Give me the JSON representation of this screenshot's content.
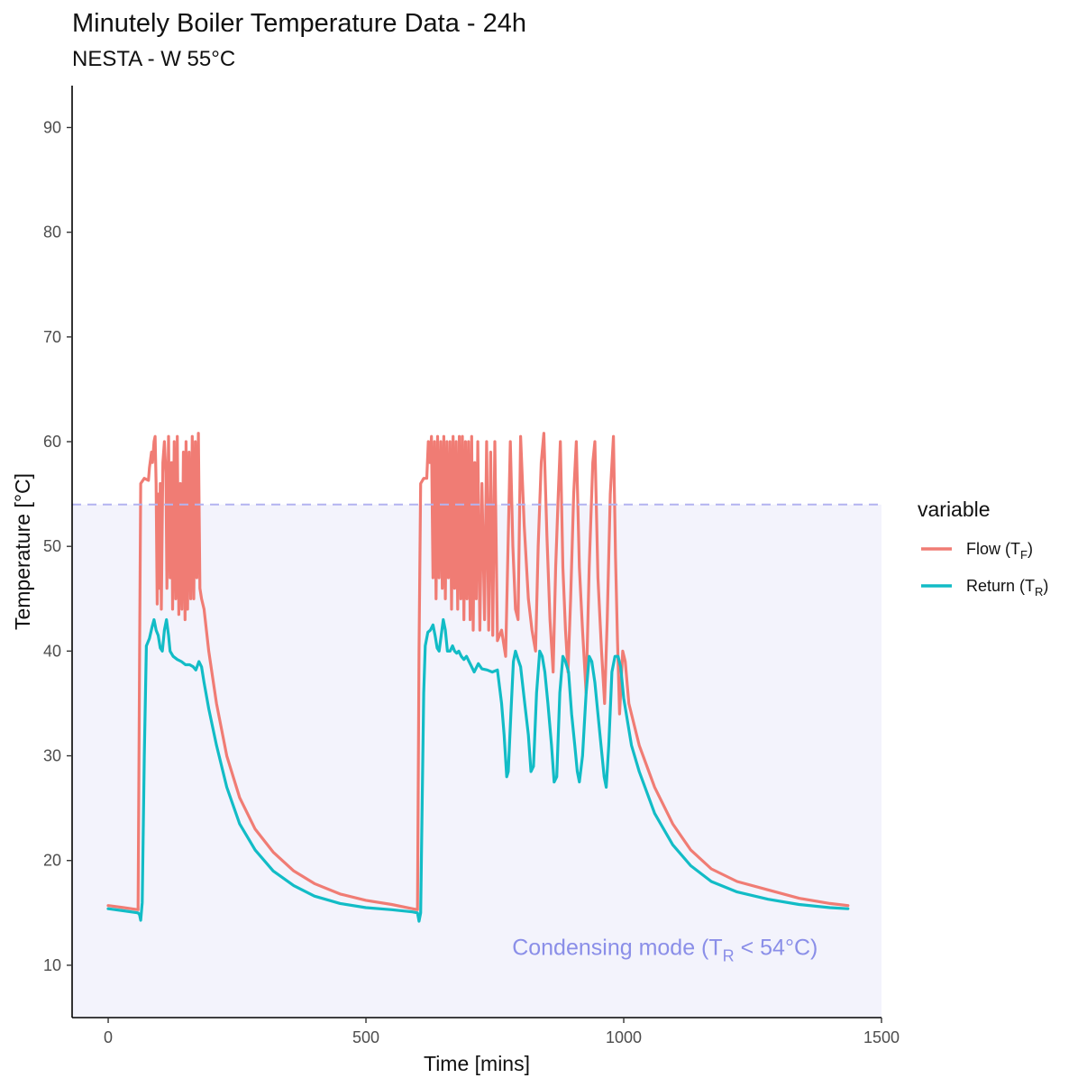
{
  "chart_data": {
    "type": "line",
    "title": "Minutely Boiler Temperature Data - 24h",
    "subtitle": "NESTA - W 55°C",
    "xlabel": "Time [mins]",
    "ylabel": "Temperature [°C]",
    "xlim": [
      -70,
      1500
    ],
    "ylim": [
      5,
      94
    ],
    "x_ticks": [
      0,
      500,
      1000,
      1500
    ],
    "y_ticks": [
      10,
      20,
      30,
      40,
      50,
      60,
      70,
      80,
      90
    ],
    "grid": false,
    "legend": {
      "title": "variable",
      "position": "right",
      "entries": [
        {
          "label": "Flow (T",
          "sub": "F",
          "suffix": ")"
        },
        {
          "label": "Return (T",
          "sub": "R",
          "suffix": ")"
        }
      ]
    },
    "threshold": {
      "y": 54,
      "style": "dashed",
      "color": "#b3b3f0"
    },
    "region": {
      "x": [
        -70,
        1500
      ],
      "y": [
        5,
        54
      ],
      "color": "#f3f3fc"
    },
    "annotation": {
      "text": "Condensing mode (T",
      "sub": "R",
      "rest": " < 54°C)",
      "x": 1080,
      "y": 11,
      "color": "#8a8ee8"
    },
    "colors": {
      "flow": "#f07c74",
      "return": "#12bcc6"
    },
    "series": [
      {
        "name": "Flow (TF)",
        "color": "#f07c74",
        "points": [
          [
            0,
            15.7
          ],
          [
            30,
            15.5
          ],
          [
            58,
            15.3
          ],
          [
            61,
            40
          ],
          [
            63,
            56
          ],
          [
            70,
            56.5
          ],
          [
            78,
            56.3
          ],
          [
            80,
            57.5
          ],
          [
            84,
            59
          ],
          [
            86,
            58
          ],
          [
            89,
            60
          ],
          [
            91,
            60.5
          ],
          [
            93,
            56
          ],
          [
            95,
            44.5
          ],
          [
            97,
            55
          ],
          [
            99,
            46
          ],
          [
            101,
            56
          ],
          [
            103,
            44
          ],
          [
            106,
            58
          ],
          [
            109,
            60
          ],
          [
            112,
            57
          ],
          [
            114,
            46
          ],
          [
            117,
            60.5
          ],
          [
            120,
            47
          ],
          [
            123,
            58
          ],
          [
            125,
            44
          ],
          [
            128,
            60
          ],
          [
            131,
            45
          ],
          [
            134,
            60.5
          ],
          [
            137,
            43.5
          ],
          [
            140,
            56
          ],
          [
            143,
            44
          ],
          [
            146,
            59
          ],
          [
            149,
            43
          ],
          [
            151,
            60
          ],
          [
            154,
            44
          ],
          [
            157,
            59
          ],
          [
            160,
            45
          ],
          [
            163,
            60.5
          ],
          [
            166,
            45
          ],
          [
            169,
            60
          ],
          [
            172,
            47
          ],
          [
            175,
            60.8
          ],
          [
            178,
            46
          ],
          [
            181,
            45
          ],
          [
            186,
            44
          ],
          [
            195,
            40
          ],
          [
            210,
            35
          ],
          [
            230,
            30
          ],
          [
            255,
            26
          ],
          [
            285,
            23
          ],
          [
            320,
            20.8
          ],
          [
            360,
            19
          ],
          [
            400,
            17.8
          ],
          [
            450,
            16.8
          ],
          [
            500,
            16.2
          ],
          [
            550,
            15.8
          ],
          [
            590,
            15.4
          ],
          [
            600,
            15.3
          ],
          [
            603,
            40
          ],
          [
            606,
            56
          ],
          [
            612,
            56.5
          ],
          [
            618,
            56.5
          ],
          [
            621,
            60
          ],
          [
            624,
            58
          ],
          [
            627,
            60.5
          ],
          [
            630,
            47
          ],
          [
            633,
            60
          ],
          [
            636,
            45
          ],
          [
            639,
            60.5
          ],
          [
            642,
            47
          ],
          [
            645,
            60
          ],
          [
            648,
            46
          ],
          [
            651,
            60.5
          ],
          [
            654,
            45
          ],
          [
            657,
            60
          ],
          [
            660,
            47
          ],
          [
            663,
            60
          ],
          [
            666,
            44
          ],
          [
            669,
            60.5
          ],
          [
            672,
            46
          ],
          [
            675,
            60
          ],
          [
            678,
            44
          ],
          [
            681,
            60.5
          ],
          [
            684,
            45
          ],
          [
            687,
            60.5
          ],
          [
            690,
            43
          ],
          [
            693,
            60
          ],
          [
            696,
            45
          ],
          [
            699,
            60
          ],
          [
            702,
            43
          ],
          [
            705,
            60.5
          ],
          [
            708,
            42
          ],
          [
            711,
            58
          ],
          [
            714,
            45
          ],
          [
            717,
            60
          ],
          [
            721,
            42
          ],
          [
            725,
            56
          ],
          [
            730,
            43
          ],
          [
            734,
            60
          ],
          [
            738,
            42
          ],
          [
            742,
            59
          ],
          [
            746,
            41.5
          ],
          [
            750,
            60
          ],
          [
            755,
            41
          ],
          [
            763,
            42
          ],
          [
            771,
            39.5
          ],
          [
            780,
            60
          ],
          [
            785,
            50
          ],
          [
            790,
            44
          ],
          [
            795,
            43
          ],
          [
            800,
            60.5
          ],
          [
            807,
            52
          ],
          [
            815,
            45
          ],
          [
            822,
            42
          ],
          [
            829,
            40
          ],
          [
            834,
            50
          ],
          [
            840,
            58
          ],
          [
            845,
            60.8
          ],
          [
            851,
            51
          ],
          [
            857,
            43
          ],
          [
            863,
            38
          ],
          [
            868,
            48
          ],
          [
            873,
            55
          ],
          [
            877,
            60
          ],
          [
            882,
            48
          ],
          [
            887,
            42
          ],
          [
            892,
            38
          ],
          [
            897,
            45
          ],
          [
            903,
            55
          ],
          [
            908,
            60
          ],
          [
            914,
            48
          ],
          [
            920,
            42
          ],
          [
            927,
            36
          ],
          [
            933,
            48
          ],
          [
            940,
            58
          ],
          [
            944,
            60
          ],
          [
            950,
            47
          ],
          [
            957,
            40
          ],
          [
            963,
            35
          ],
          [
            968,
            43
          ],
          [
            974,
            55
          ],
          [
            980,
            60.5
          ],
          [
            984,
            49
          ],
          [
            988,
            41
          ],
          [
            992,
            34
          ],
          [
            998,
            40
          ],
          [
            1003,
            39
          ],
          [
            1010,
            35
          ],
          [
            1030,
            31
          ],
          [
            1060,
            27
          ],
          [
            1095,
            23.5
          ],
          [
            1130,
            21
          ],
          [
            1170,
            19.2
          ],
          [
            1220,
            18
          ],
          [
            1280,
            17.2
          ],
          [
            1340,
            16.4
          ],
          [
            1400,
            15.9
          ],
          [
            1435,
            15.7
          ]
        ]
      },
      {
        "name": "Return (TR)",
        "color": "#12bcc6",
        "points": [
          [
            0,
            15.4
          ],
          [
            30,
            15.2
          ],
          [
            58,
            15
          ],
          [
            61,
            14.8
          ],
          [
            63,
            14.3
          ],
          [
            66,
            16
          ],
          [
            70,
            30
          ],
          [
            74,
            40.5
          ],
          [
            80,
            41.2
          ],
          [
            85,
            42.3
          ],
          [
            89,
            43
          ],
          [
            93,
            42
          ],
          [
            97,
            41.5
          ],
          [
            101,
            40.3
          ],
          [
            105,
            40
          ],
          [
            109,
            42
          ],
          [
            113,
            43
          ],
          [
            117,
            41.5
          ],
          [
            120,
            40
          ],
          [
            126,
            39.5
          ],
          [
            134,
            39.2
          ],
          [
            142,
            39
          ],
          [
            150,
            38.7
          ],
          [
            158,
            38.7
          ],
          [
            165,
            38.5
          ],
          [
            170,
            38.2
          ],
          [
            176,
            39
          ],
          [
            181,
            38.5
          ],
          [
            186,
            37
          ],
          [
            195,
            34.5
          ],
          [
            210,
            31
          ],
          [
            230,
            27
          ],
          [
            255,
            23.5
          ],
          [
            285,
            21
          ],
          [
            320,
            19
          ],
          [
            360,
            17.6
          ],
          [
            400,
            16.6
          ],
          [
            450,
            15.9
          ],
          [
            500,
            15.5
          ],
          [
            550,
            15.3
          ],
          [
            590,
            15.1
          ],
          [
            600,
            15
          ],
          [
            603,
            14.2
          ],
          [
            606,
            15
          ],
          [
            612,
            36
          ],
          [
            615,
            40.5
          ],
          [
            620,
            41.8
          ],
          [
            625,
            42
          ],
          [
            630,
            42.5
          ],
          [
            634,
            41.5
          ],
          [
            638,
            40.3
          ],
          [
            642,
            40
          ],
          [
            646,
            41.5
          ],
          [
            650,
            43
          ],
          [
            654,
            42
          ],
          [
            658,
            40
          ],
          [
            663,
            40
          ],
          [
            668,
            40.5
          ],
          [
            672,
            40
          ],
          [
            676,
            39.8
          ],
          [
            680,
            40
          ],
          [
            685,
            39.5
          ],
          [
            690,
            39.2
          ],
          [
            695,
            39.5
          ],
          [
            700,
            39
          ],
          [
            705,
            38.5
          ],
          [
            710,
            38
          ],
          [
            718,
            38.8
          ],
          [
            725,
            38.3
          ],
          [
            735,
            38.2
          ],
          [
            745,
            38
          ],
          [
            755,
            38.2
          ],
          [
            763,
            35
          ],
          [
            768,
            32
          ],
          [
            773,
            28
          ],
          [
            776,
            28.5
          ],
          [
            781,
            34
          ],
          [
            786,
            39
          ],
          [
            790,
            40
          ],
          [
            795,
            39.2
          ],
          [
            800,
            38.5
          ],
          [
            808,
            35
          ],
          [
            815,
            32
          ],
          [
            820,
            28.5
          ],
          [
            825,
            29
          ],
          [
            831,
            36
          ],
          [
            837,
            40
          ],
          [
            842,
            39.5
          ],
          [
            847,
            38
          ],
          [
            853,
            35
          ],
          [
            860,
            31
          ],
          [
            865,
            27.5
          ],
          [
            870,
            28
          ],
          [
            876,
            36
          ],
          [
            882,
            39.5
          ],
          [
            887,
            39
          ],
          [
            893,
            38
          ],
          [
            899,
            34
          ],
          [
            905,
            31
          ],
          [
            910,
            28.5
          ],
          [
            914,
            27.5
          ],
          [
            920,
            30
          ],
          [
            927,
            36
          ],
          [
            933,
            39.5
          ],
          [
            938,
            39
          ],
          [
            944,
            37
          ],
          [
            950,
            34
          ],
          [
            956,
            31
          ],
          [
            962,
            28
          ],
          [
            966,
            27
          ],
          [
            971,
            31
          ],
          [
            977,
            38
          ],
          [
            983,
            39.5
          ],
          [
            989,
            39.5
          ],
          [
            994,
            38.5
          ],
          [
            1000,
            35.5
          ],
          [
            1015,
            31
          ],
          [
            1030,
            28.5
          ],
          [
            1060,
            24.5
          ],
          [
            1095,
            21.5
          ],
          [
            1130,
            19.5
          ],
          [
            1170,
            18
          ],
          [
            1220,
            17
          ],
          [
            1280,
            16.3
          ],
          [
            1340,
            15.8
          ],
          [
            1400,
            15.5
          ],
          [
            1435,
            15.4
          ]
        ]
      }
    ]
  }
}
